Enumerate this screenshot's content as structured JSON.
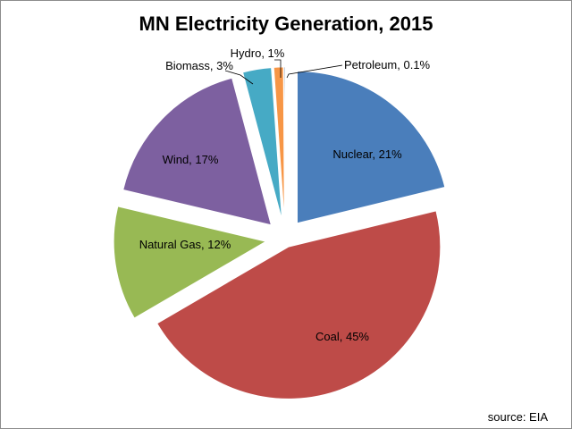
{
  "chart_data": {
    "type": "pie",
    "title": "MN Electricity Generation, 2015",
    "slices": [
      {
        "label": "Nuclear",
        "value": 21,
        "label_text": "Nuclear, 21%",
        "color": "#4A7EBB"
      },
      {
        "label": "Coal",
        "value": 45,
        "label_text": "Coal, 45%",
        "color": "#BE4B48"
      },
      {
        "label": "Natural Gas",
        "value": 12,
        "label_text": "Natural Gas, 12%",
        "color": "#98B954"
      },
      {
        "label": "Wind",
        "value": 17,
        "label_text": "Wind, 17%",
        "color": "#7D60A0"
      },
      {
        "label": "Biomass",
        "value": 3,
        "label_text": "Biomass, 3%",
        "color": "#46AAC5"
      },
      {
        "label": "Hydro",
        "value": 1,
        "label_text": "Hydro, 1%",
        "color": "#F79646"
      },
      {
        "label": "Petroleum",
        "value": 0.1,
        "label_text": "Petroleum, 0.1%",
        "color": "#2C4D75"
      }
    ],
    "exploded": true,
    "legend": "none"
  },
  "source": "source:  EIA"
}
